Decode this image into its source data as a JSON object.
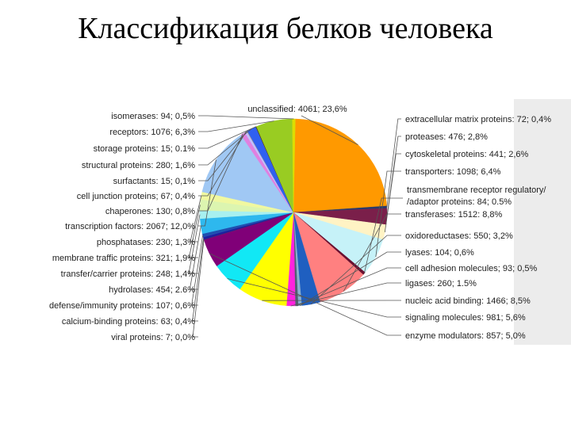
{
  "title": "Классификация белков человека",
  "chart_data": {
    "type": "pie",
    "slices": [
      {
        "label": "unclassified: 4061; 23,6%",
        "value": 23.6,
        "color": "#ff9900",
        "side": "top"
      },
      {
        "label": "extracellular matrix proteins: 72; 0,4%",
        "value": 0.4,
        "color": "#2a3a6a",
        "side": "right"
      },
      {
        "label": "proteases: 476; 2,8%",
        "value": 2.8,
        "color": "#7a1f4a",
        "side": "right"
      },
      {
        "label": "cytoskeletal proteins: 441; 2,6%",
        "value": 2.6,
        "color": "#fff3c4",
        "side": "right"
      },
      {
        "label": "transporters: 1098; 6,4%",
        "value": 6.4,
        "color": "#c6f2f8",
        "side": "right"
      },
      {
        "label": "transmembrane receptor regulatory/ /adaptor proteins: 84; 0.5%",
        "value": 0.5,
        "color": "#6a1030",
        "side": "right"
      },
      {
        "label": "transferases: 1512: 8,8%",
        "value": 8.8,
        "color": "#ff8080",
        "side": "right"
      },
      {
        "label": "oxidoreductases: 550; 3,2%",
        "value": 3.2,
        "color": "#1f5fc0",
        "side": "right"
      },
      {
        "label": "lyases: 104; 0,6%",
        "value": 0.6,
        "color": "#8ab0d0",
        "side": "right"
      },
      {
        "label": "cell adhesion molecules; 93; 0,5%",
        "value": 0.5,
        "color": "#506070",
        "side": "right"
      },
      {
        "label": "ligases: 260; 1.5%",
        "value": 1.5,
        "color": "#ff22dd",
        "side": "right"
      },
      {
        "label": "nucleic acid binding: 1466; 8,5%",
        "value": 8.5,
        "color": "#ffff00",
        "side": "right"
      },
      {
        "label": "signaling molecules: 981; 5,6%",
        "value": 5.6,
        "color": "#11e8f5",
        "side": "right"
      },
      {
        "label": "enzyme modulators: 857; 5,0%",
        "value": 5.0,
        "color": "#800078",
        "side": "right"
      },
      {
        "label": "viral proteins: 7; 0,0%",
        "value": 0.05,
        "color": "#444444",
        "side": "left"
      },
      {
        "label": "calcium-binding proteins: 63; 0,4%",
        "value": 0.4,
        "color": "#1e1ea0",
        "side": "left"
      },
      {
        "label": "defense/immunity proteins: 107; 0,6%",
        "value": 0.6,
        "color": "#1f4fb0",
        "side": "left"
      },
      {
        "label": "hydrolases: 454; 2.6%",
        "value": 2.6,
        "color": "#2eb8ee",
        "side": "left"
      },
      {
        "label": "transfer/carrier proteins: 248; 1,4%",
        "value": 1.4,
        "color": "#a8f0f0",
        "side": "left"
      },
      {
        "label": "membrane traffic proteins: 321; 1,9%",
        "value": 1.9,
        "color": "#dcf5b0",
        "side": "left"
      },
      {
        "label": "phosphatases: 230; 1,3%",
        "value": 1.3,
        "color": "#f0f8a0",
        "side": "left"
      },
      {
        "label": "transcription factors: 2067; 12,0%",
        "value": 12.0,
        "color": "#a0c8f4",
        "side": "left"
      },
      {
        "label": "chaperones: 130; 0,8%",
        "value": 0.8,
        "color": "#e080e0",
        "side": "left"
      },
      {
        "label": "cell junction proteins; 67; 0,4%",
        "value": 0.4,
        "color": "#c0c0ff",
        "side": "left"
      },
      {
        "label": "surfactants: 15; 0,1%",
        "value": 0.1,
        "color": "#888888",
        "side": "left"
      },
      {
        "label": "structural proteins: 280; 1,6%",
        "value": 1.6,
        "color": "#3060f0",
        "side": "left"
      },
      {
        "label": "storage proteins: 15; 0.1%",
        "value": 0.1,
        "color": "#553300",
        "side": "left"
      },
      {
        "label": "receptors: 1076; 6,3%",
        "value": 6.3,
        "color": "#99cc22",
        "side": "left"
      },
      {
        "label": "isomerases: 94; 0,5%",
        "value": 0.5,
        "color": "#dddd00",
        "side": "left"
      }
    ]
  }
}
